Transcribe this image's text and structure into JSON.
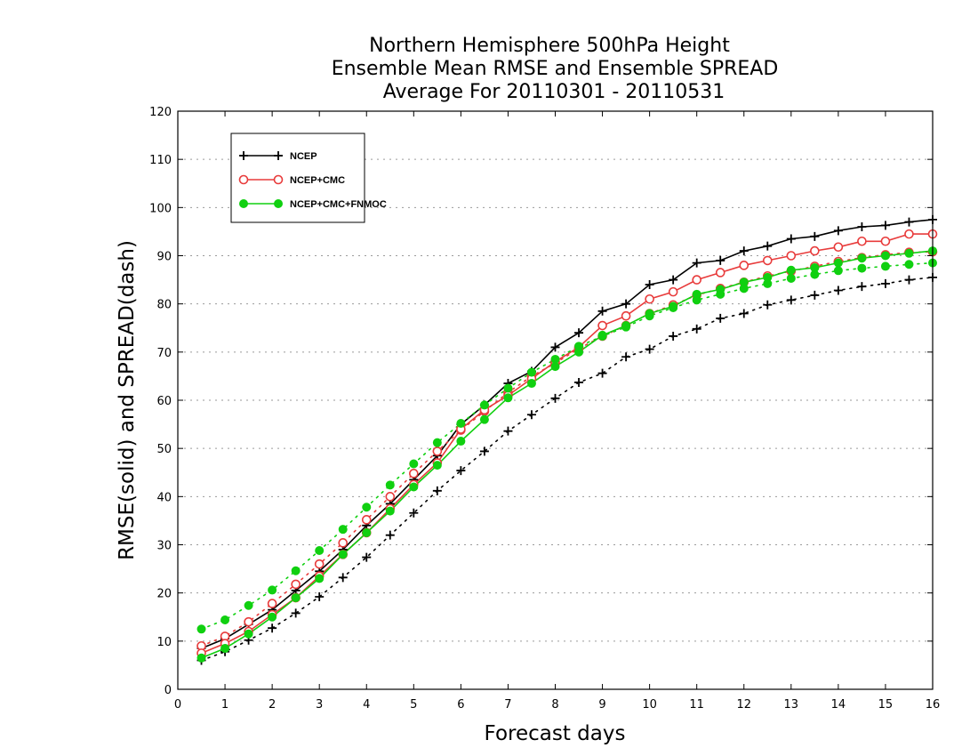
{
  "chart_data": {
    "type": "line",
    "title": [
      "Northern Hemisphere 500hPa Height",
      "Ensemble Mean RMSE and Ensemble SPREAD",
      "Average For 20110301 - 20110531"
    ],
    "xlabel": "Forecast days",
    "ylabel": "RMSE(solid) and SPREAD(dash)",
    "xlim": [
      0,
      16
    ],
    "ylim": [
      0,
      120
    ],
    "xticks": [
      "0",
      "1",
      "2",
      "3",
      "4",
      "5",
      "6",
      "7",
      "8",
      "9",
      "10",
      "11",
      "12",
      "13",
      "14",
      "15",
      "16"
    ],
    "yticks": [
      "0",
      "10",
      "20",
      "30",
      "40",
      "50",
      "60",
      "70",
      "80",
      "90",
      "100",
      "110",
      "120"
    ],
    "grid": "horizontal-dotted",
    "legend_position": "top-left",
    "x": [
      0.5,
      1,
      1.5,
      2,
      2.5,
      3,
      3.5,
      4,
      4.5,
      5,
      5.5,
      6,
      6.5,
      7,
      7.5,
      8,
      8.5,
      9,
      9.5,
      10,
      10.5,
      11,
      11.5,
      12,
      12.5,
      13,
      13.5,
      14,
      14.5,
      15,
      15.5,
      16
    ],
    "series": [
      {
        "name": "NCEP",
        "color": "#000000",
        "marker": "plus",
        "rmse": [
          8.5,
          10.5,
          13.5,
          16.5,
          20.5,
          24.5,
          29,
          34,
          38.5,
          43.5,
          48.5,
          55,
          59,
          63.5,
          66,
          71,
          74,
          78.5,
          80,
          84,
          85,
          88.5,
          89,
          91,
          92,
          93.5,
          94,
          95.2,
          96,
          96.3,
          97,
          97.5
        ],
        "spread": [
          6,
          7.8,
          10.2,
          12.7,
          15.8,
          19.2,
          23.2,
          27.4,
          32,
          36.6,
          41.2,
          45.4,
          49.4,
          53.6,
          57,
          60.4,
          63.7,
          65.6,
          69,
          70.6,
          73.3,
          74.8,
          77,
          78,
          79.8,
          80.8,
          81.8,
          82.8,
          83.6,
          84.2,
          85,
          85.5
        ]
      },
      {
        "name": "NCEP+CMC",
        "color": "#e83b3b",
        "marker": "open-circle",
        "rmse": [
          7.5,
          9.5,
          12,
          15.5,
          19,
          23.5,
          28,
          32.5,
          37.5,
          42.5,
          47,
          54,
          58,
          61,
          64.5,
          68,
          71,
          75.5,
          77.5,
          81,
          82.5,
          85,
          86.5,
          88,
          89,
          90,
          91,
          91.8,
          93,
          93,
          94.5,
          94.5
        ],
        "spread": [
          9,
          11,
          14,
          17.8,
          21.8,
          26,
          30.4,
          35.2,
          40,
          44.8,
          49.4,
          53.8,
          57.7,
          61.6,
          65,
          67.7,
          70.7,
          73.3,
          75.5,
          78,
          79.8,
          81.8,
          83.2,
          84.5,
          85.8,
          86.8,
          87.8,
          88.8,
          89.6,
          90.2,
          90.7,
          90.8
        ]
      },
      {
        "name": "NCEP+CMC+FNMOC",
        "color": "#10d010",
        "marker": "filled-circle",
        "rmse": [
          6.5,
          8.5,
          11.5,
          15,
          19,
          23,
          28,
          32.5,
          37,
          42,
          46.5,
          51.5,
          56,
          60.5,
          63.5,
          67,
          70,
          73.5,
          75.5,
          78,
          79.5,
          82,
          83,
          84.5,
          85.5,
          87,
          87.5,
          88.5,
          89.5,
          90,
          90.5,
          91
        ],
        "spread": [
          12.5,
          14.4,
          17.4,
          20.6,
          24.6,
          28.8,
          33.2,
          37.8,
          42.4,
          46.8,
          51.2,
          55.2,
          59,
          62.5,
          65.8,
          68.5,
          71.2,
          73.3,
          75.2,
          77.5,
          79.2,
          80.8,
          82,
          83.2,
          84.2,
          85.3,
          86.1,
          86.9,
          87.4,
          87.8,
          88.2,
          88.5
        ]
      }
    ]
  }
}
